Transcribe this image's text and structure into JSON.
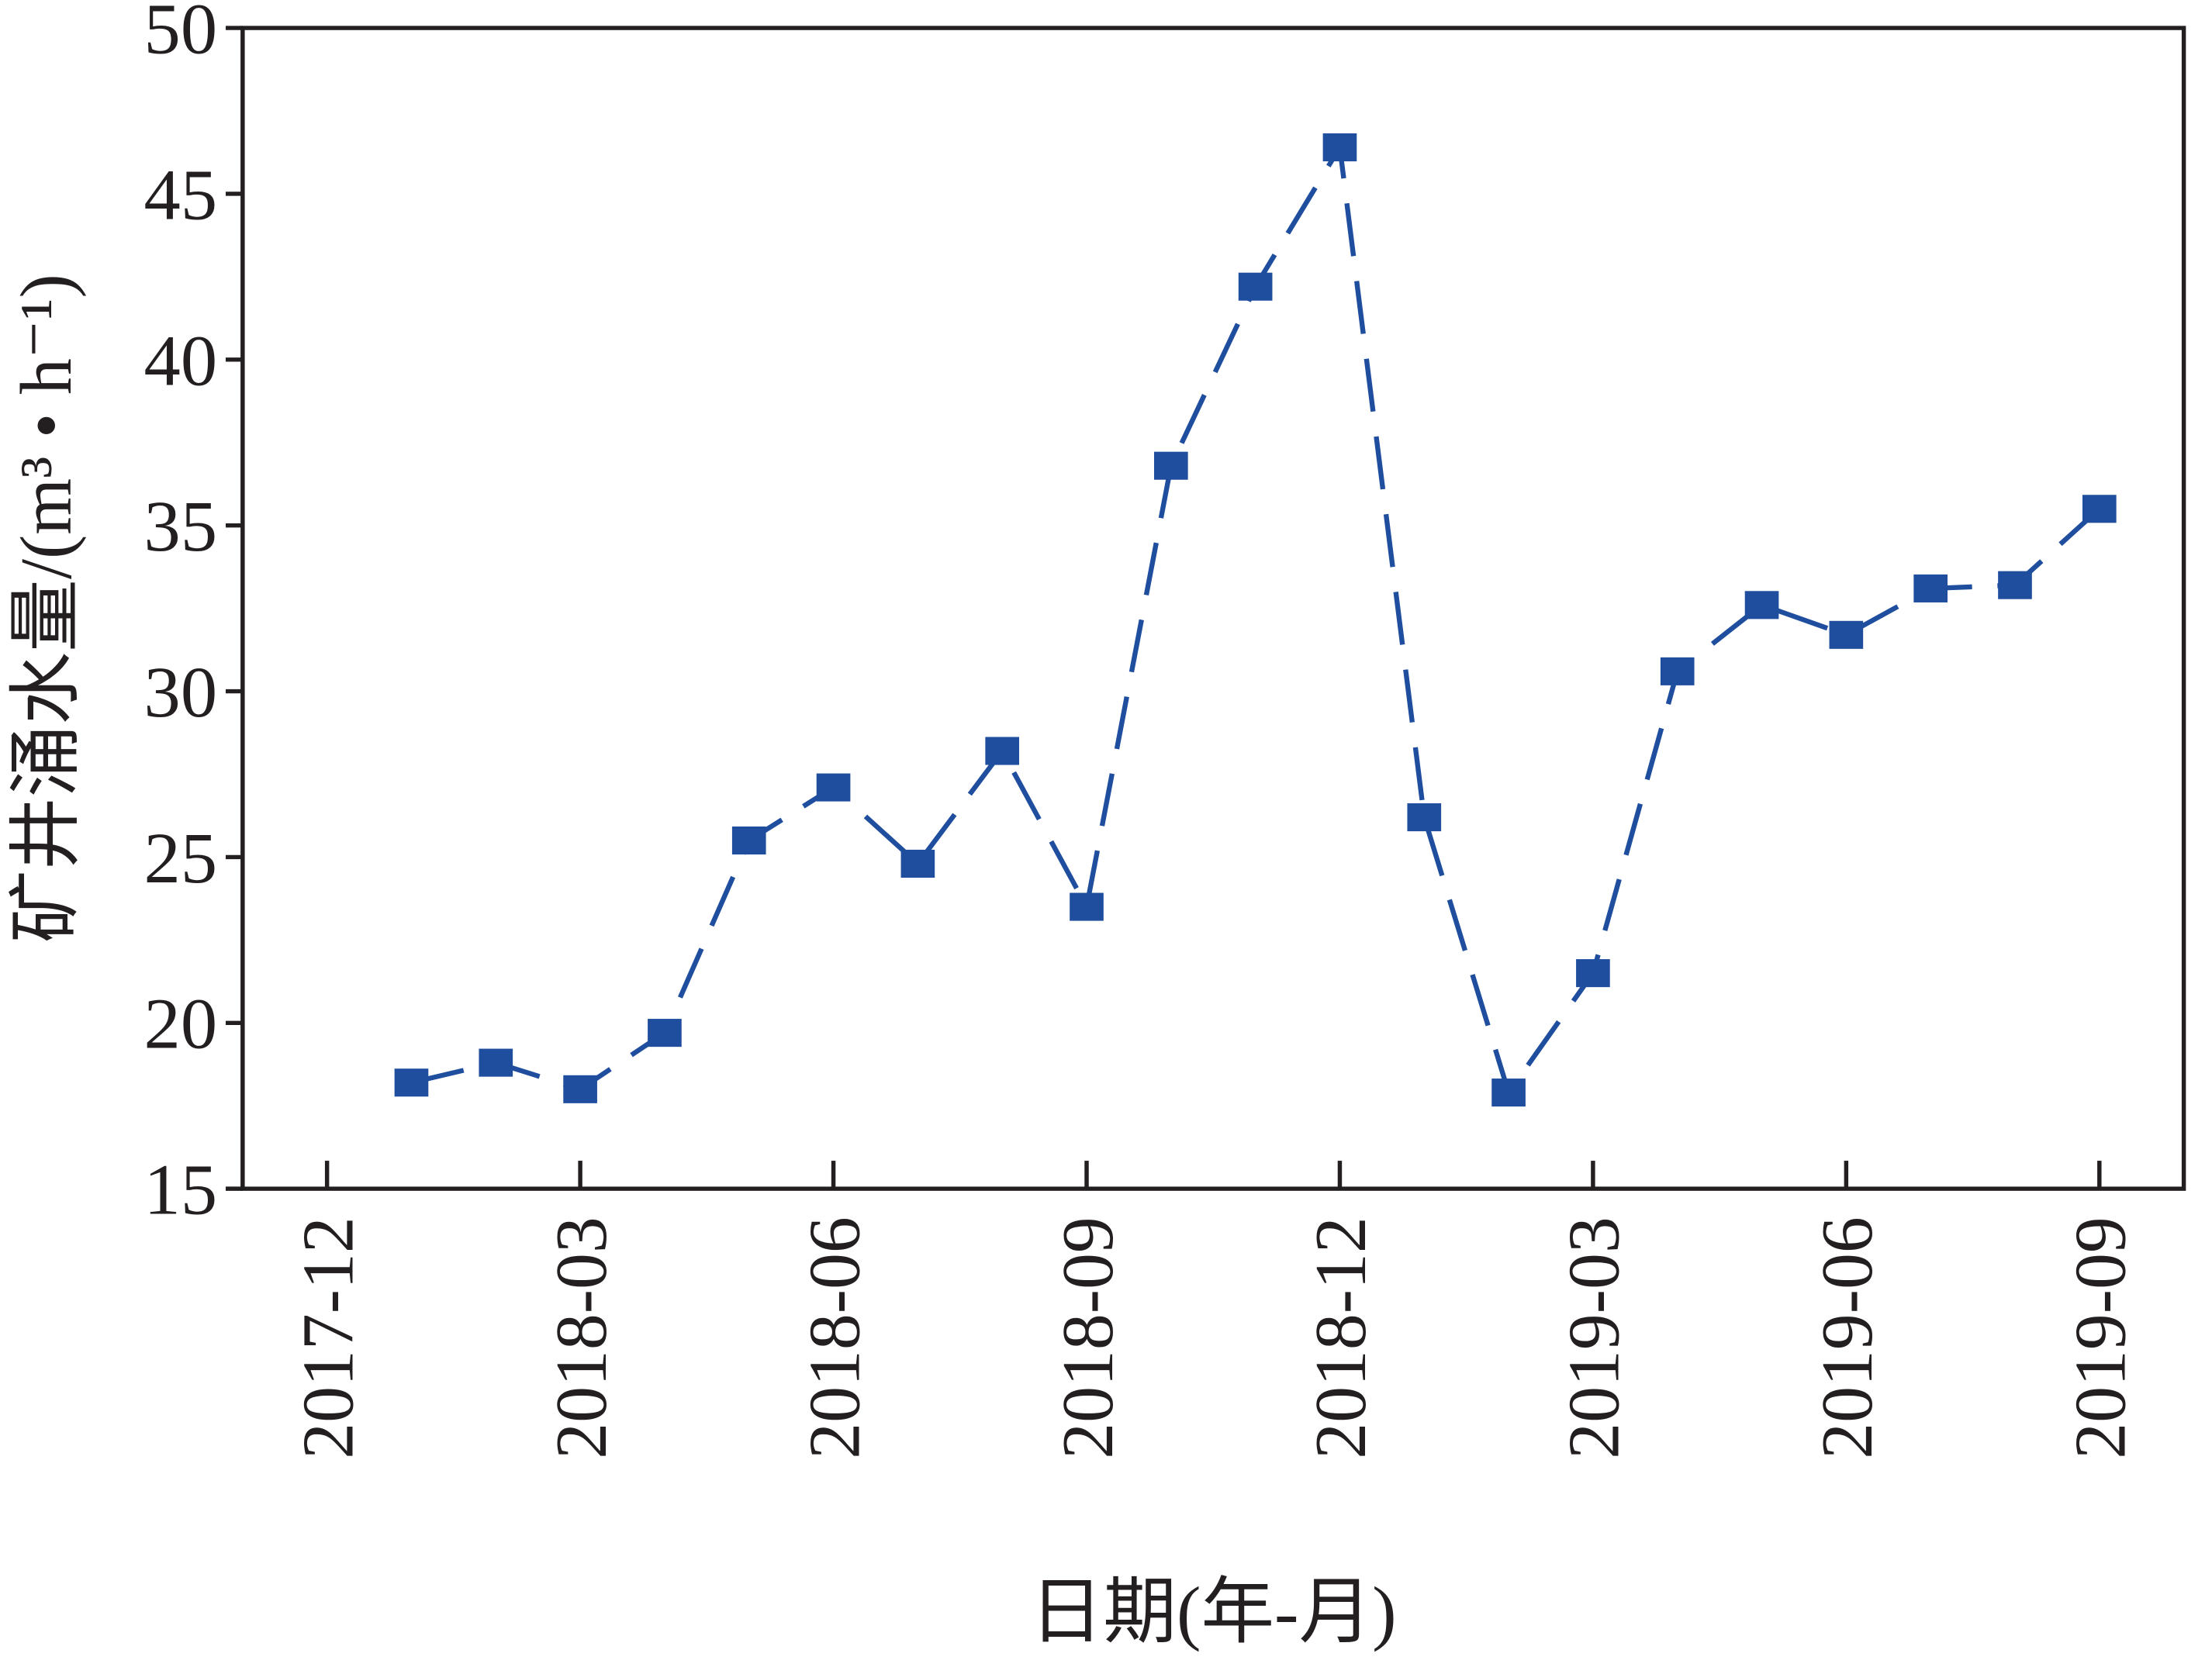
{
  "chart_data": {
    "type": "line",
    "x_label": "日期(年-月)",
    "y_label": "矿井涌水量/(m³ • h⁻¹)",
    "x": [
      "2018-01",
      "2018-02",
      "2018-03",
      "2018-04",
      "2018-05",
      "2018-06",
      "2018-07",
      "2018-08",
      "2018-09",
      "2018-10",
      "2018-11",
      "2018-12",
      "2019-01",
      "2019-02",
      "2019-03",
      "2019-04",
      "2019-05",
      "2019-06",
      "2019-07",
      "2019-08",
      "2019-09"
    ],
    "series": [
      {
        "color": "#1f4e9e",
        "values": [
          18.2,
          18.8,
          18.0,
          19.7,
          25.5,
          27.1,
          24.8,
          28.2,
          23.5,
          36.8,
          42.2,
          46.4,
          26.2,
          17.9,
          21.5,
          30.6,
          32.6,
          31.7,
          33.1,
          33.2,
          35.5
        ]
      }
    ],
    "xticks": [
      "2017-12",
      "2018-03",
      "2018-06",
      "2018-09",
      "2018-12",
      "2019-03",
      "2019-06",
      "2019-09"
    ],
    "ylim": [
      15,
      50
    ],
    "yticks": [
      15,
      20,
      25,
      30,
      35,
      40,
      45,
      50
    ]
  }
}
